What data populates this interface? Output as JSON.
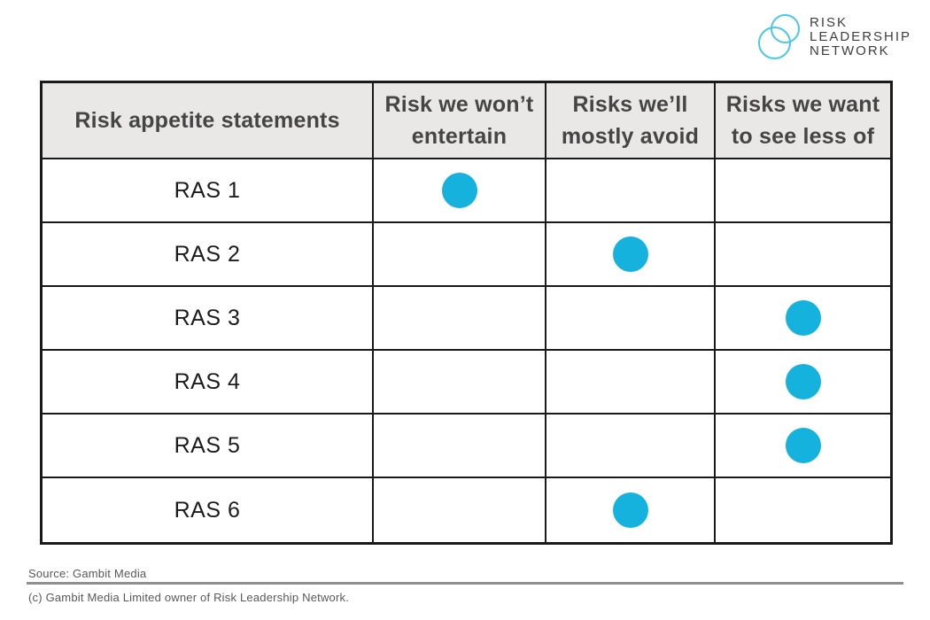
{
  "logo": {
    "lines": [
      "RISK",
      "LEADERSHIP",
      "NETWORK"
    ],
    "circle_color": "#49c7e9",
    "text_color": "#3e3e3e"
  },
  "table": {
    "headers": [
      "Risk appetite statements",
      "Risk we won’t entertain",
      "Risks we’ll mostly avoid",
      "Risks we want to see less of"
    ],
    "rows": [
      {
        "label": "RAS 1",
        "dot_column": 1
      },
      {
        "label": "RAS 2",
        "dot_column": 2
      },
      {
        "label": "RAS 3",
        "dot_column": 3
      },
      {
        "label": "RAS 4",
        "dot_column": 3
      },
      {
        "label": "RAS 5",
        "dot_column": 3
      },
      {
        "label": "RAS 6",
        "dot_column": 2
      }
    ],
    "dot_color": "#15b2dd",
    "header_bg": "#e9e8e6"
  },
  "footer": {
    "source": "Source: Gambit Media",
    "copyright": "(c) Gambit Media Limited owner of Risk Leadership Network."
  },
  "chart_data": {
    "type": "table",
    "title": "Risk appetite statements",
    "columns": [
      "Risk appetite statements",
      "Risk we won’t entertain",
      "Risks we’ll mostly avoid",
      "Risks we want to see less of"
    ],
    "categories": [
      "RAS 1",
      "RAS 2",
      "RAS 3",
      "RAS 4",
      "RAS 5",
      "RAS 6"
    ],
    "marks": [
      {
        "row": "RAS 1",
        "marked_column": "Risk we won’t entertain"
      },
      {
        "row": "RAS 2",
        "marked_column": "Risks we’ll mostly avoid"
      },
      {
        "row": "RAS 3",
        "marked_column": "Risks we want to see less of"
      },
      {
        "row": "RAS 4",
        "marked_column": "Risks we want to see less of"
      },
      {
        "row": "RAS 5",
        "marked_column": "Risks we want to see less of"
      },
      {
        "row": "RAS 6",
        "marked_column": "Risks we’ll mostly avoid"
      }
    ],
    "marker": "filled-circle",
    "marker_color": "#15b2dd",
    "source": "Gambit Media"
  }
}
